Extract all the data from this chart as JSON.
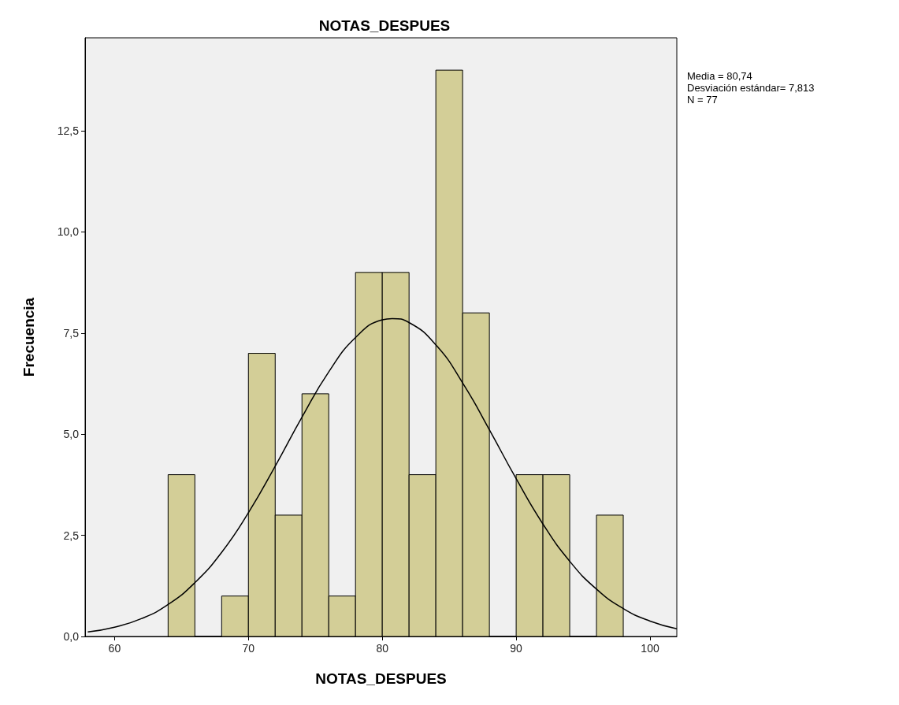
{
  "chart_data": {
    "type": "histogram",
    "title": "NOTAS_DESPUES",
    "xlabel": "NOTAS_DESPUES",
    "ylabel": "Frecuencia",
    "xlim": [
      57.8,
      102
    ],
    "xticks": [
      60,
      70,
      80,
      90,
      100
    ],
    "ylim": [
      0,
      14.8
    ],
    "yticks": [
      {
        "value": 0,
        "label": "0,0"
      },
      {
        "value": 2.5,
        "label": "2,5"
      },
      {
        "value": 5,
        "label": "5,0"
      },
      {
        "value": 7.5,
        "label": "7,5"
      },
      {
        "value": 10,
        "label": "10,0"
      },
      {
        "value": 12.5,
        "label": "12,5"
      }
    ],
    "grid": false,
    "annotations": [
      "Media = 80,74",
      "Desviación estándar= 7,813",
      "N = 77"
    ],
    "series": [
      {
        "type": "histogram",
        "color": "#d3ce97",
        "bins": [
          64,
          66,
          68,
          70,
          72,
          74,
          76,
          78,
          80,
          82,
          84,
          86,
          88,
          90,
          92,
          94,
          96,
          98
        ],
        "values": [
          4,
          0,
          1,
          7,
          3,
          6,
          1,
          9,
          9,
          4,
          14,
          8,
          0,
          4,
          4,
          0,
          3
        ]
      },
      {
        "type": "line",
        "color": "#000000",
        "marker": "none",
        "x": [
          58,
          60,
          62,
          64,
          66,
          68,
          70,
          72,
          74,
          76,
          78,
          80,
          80.74,
          82,
          84,
          86,
          88,
          90,
          92,
          94,
          96,
          98,
          100,
          102
        ],
        "values": [
          0.11,
          0.23,
          0.44,
          0.79,
          1.33,
          2.08,
          3.06,
          4.21,
          5.42,
          6.54,
          7.39,
          7.83,
          7.86,
          7.76,
          7.21,
          6.27,
          5.11,
          3.9,
          2.78,
          1.86,
          1.17,
          0.69,
          0.38,
          0.19
        ]
      }
    ]
  }
}
